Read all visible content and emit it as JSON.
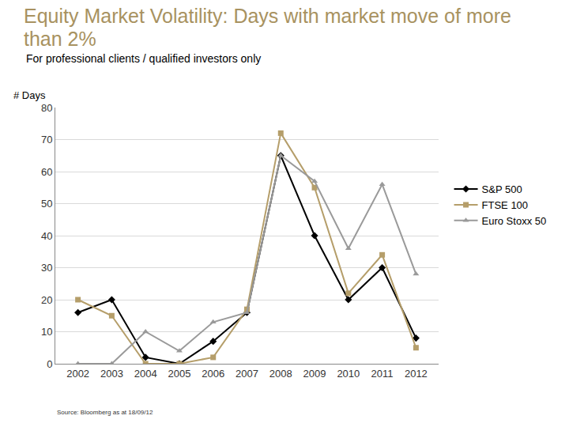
{
  "chart_data": {
    "type": "line",
    "title": "Equity Market Volatility: Days with market move of more than 2%",
    "subtitle": "For professional clients / qualified investors only",
    "y_label": "# Days",
    "source": "Source: Bloomberg as at 18/09/12",
    "categories": [
      "2002",
      "2003",
      "2004",
      "2005",
      "2006",
      "2007",
      "2008",
      "2009",
      "2010",
      "2011",
      "2012"
    ],
    "series": [
      {
        "name": "S&P 500",
        "color": "#000000",
        "marker": "diamond",
        "values": [
          16,
          20,
          2,
          0,
          7,
          16,
          65,
          40,
          20,
          30,
          8
        ]
      },
      {
        "name": "FTSE 100",
        "color": "#b59e6a",
        "marker": "square",
        "values": [
          20,
          15,
          0,
          0,
          2,
          17,
          72,
          55,
          22,
          34,
          5
        ]
      },
      {
        "name": "Euro Stoxx 50",
        "color": "#9a9a9a",
        "marker": "triangle",
        "values": [
          0,
          0,
          10,
          4,
          13,
          16,
          65,
          57,
          36,
          56,
          28
        ]
      }
    ],
    "ylim": [
      0,
      80
    ],
    "yticks": [
      0,
      10,
      20,
      30,
      40,
      50,
      60,
      70,
      80
    ],
    "grid": true,
    "legend": "right"
  }
}
